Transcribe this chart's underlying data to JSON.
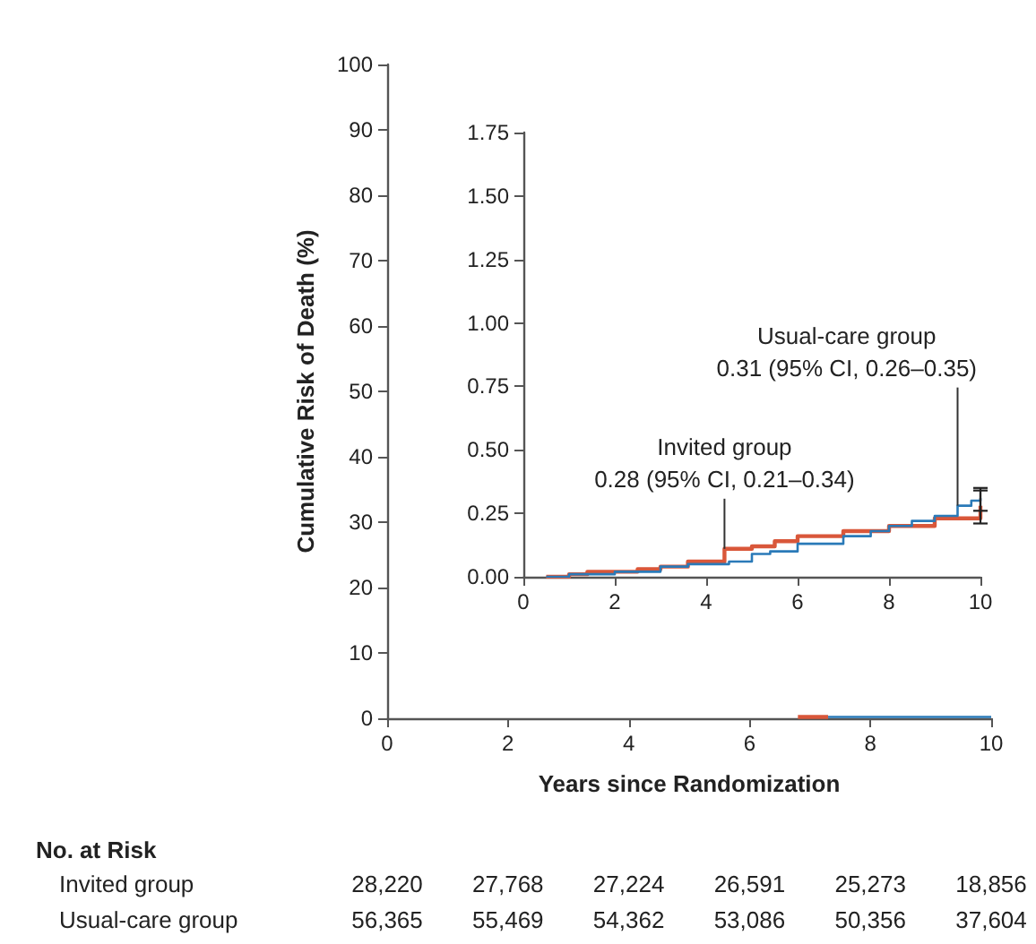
{
  "chart_data": [
    {
      "type": "step",
      "xlabel": "Years since Randomization",
      "ylabel": "Cumulative Risk of Death (%)",
      "xlim": [
        0,
        10
      ],
      "xticks": [
        0,
        2,
        4,
        6,
        8,
        10
      ],
      "ylim": [
        0,
        100
      ],
      "yticks": [
        0,
        10,
        20,
        30,
        40,
        50,
        60,
        70,
        80,
        90,
        100
      ],
      "series": [
        {
          "color": "#d9573a",
          "x": [
            6.8,
            7.3
          ],
          "values": [
            0.2,
            0.2
          ]
        },
        {
          "color": "#2a7ab8",
          "x": [
            7.3,
            10
          ],
          "values": [
            0.2,
            0.3
          ]
        }
      ],
      "annotations": [
        "No. at Risk",
        "Invited group",
        "28,220",
        "27,768",
        "27,224",
        "26,591",
        "25,273",
        "18,856",
        "Usual-care group",
        "56,365",
        "55,469",
        "54,362",
        "53,086",
        "50,356",
        "37,604"
      ]
    },
    {
      "type": "step",
      "xlim": [
        0,
        10
      ],
      "xticks": [
        0,
        2,
        4,
        6,
        8,
        10
      ],
      "ylim": [
        0,
        1.75
      ],
      "yticks": [
        {
          "value": 0,
          "label": "0.00"
        },
        {
          "value": 0.25,
          "label": "0.25"
        },
        {
          "value": 0.5,
          "label": "0.50"
        },
        {
          "value": 0.75,
          "label": "0.75"
        },
        {
          "value": 1,
          "label": "1.00"
        },
        {
          "value": 1.25,
          "label": "1.25"
        },
        {
          "value": 1.5,
          "label": "1.50"
        },
        {
          "value": 1.75,
          "label": "1.75"
        }
      ],
      "series": [
        {
          "color": "#d9573a",
          "x": [
            0.5,
            1,
            1.4,
            2.5,
            3,
            3.6,
            4.4,
            5,
            5.5,
            6,
            7,
            8,
            9,
            10
          ],
          "values": [
            0,
            0.01,
            0.02,
            0.03,
            0.04,
            0.06,
            0.11,
            0.12,
            0.14,
            0.16,
            0.18,
            0.2,
            0.23,
            0.28
          ],
          "errors": [
            null,
            null,
            null,
            null,
            null,
            null,
            null,
            null,
            null,
            null,
            null,
            null,
            null,
            [
              0.21,
              0.34
            ]
          ]
        },
        {
          "color": "#2a7ab8",
          "x": [
            0.5,
            1,
            2,
            3,
            3.6,
            4.5,
            5,
            5.4,
            6,
            7,
            7.6,
            8,
            8.5,
            9,
            9.5,
            9.8,
            10
          ],
          "values": [
            0,
            0.01,
            0.02,
            0.04,
            0.05,
            0.06,
            0.09,
            0.1,
            0.13,
            0.16,
            0.18,
            0.2,
            0.22,
            0.24,
            0.28,
            0.3,
            0.31
          ],
          "errors": [
            null,
            null,
            null,
            null,
            null,
            null,
            null,
            null,
            null,
            null,
            null,
            null,
            null,
            null,
            null,
            null,
            [
              0.26,
              0.35
            ]
          ]
        }
      ],
      "annotations": [
        {
          "text": "Invited group\n0.28 (95% CI, 0.21–0.34)",
          "x": 4.4,
          "y": 0.11
        },
        {
          "text": "Usual-care group\n0.31 (95% CI, 0.26–0.35)",
          "x": 9.5,
          "y": 0.28
        }
      ]
    }
  ]
}
